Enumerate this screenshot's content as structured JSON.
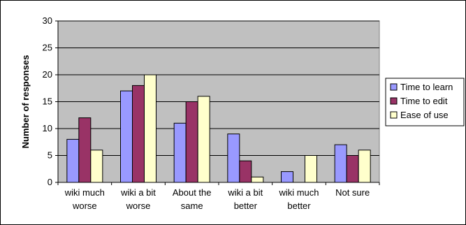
{
  "chart_data": {
    "type": "bar",
    "title": "",
    "xlabel": "",
    "ylabel": "Number of responses",
    "ylim": [
      0,
      30
    ],
    "yticks": [
      0,
      5,
      10,
      15,
      20,
      25,
      30
    ],
    "grid": true,
    "legend_position": "right",
    "categories": [
      [
        "wiki much",
        "worse"
      ],
      [
        "wiki a bit",
        "worse"
      ],
      [
        "About the",
        "same"
      ],
      [
        "wiki a bit",
        "better"
      ],
      [
        "wiki much",
        "better"
      ],
      [
        "Not sure"
      ]
    ],
    "series": [
      {
        "name": "Time to learn",
        "color": "#9999ff",
        "values": [
          8,
          17,
          11,
          9,
          2,
          7
        ]
      },
      {
        "name": "Time to edit",
        "color": "#993366",
        "values": [
          12,
          18,
          15,
          4,
          0,
          5
        ]
      },
      {
        "name": "Ease of use",
        "color": "#ffffcc",
        "values": [
          6,
          20,
          16,
          1,
          5,
          6
        ]
      }
    ],
    "plot_background": "#c0c0c0"
  }
}
